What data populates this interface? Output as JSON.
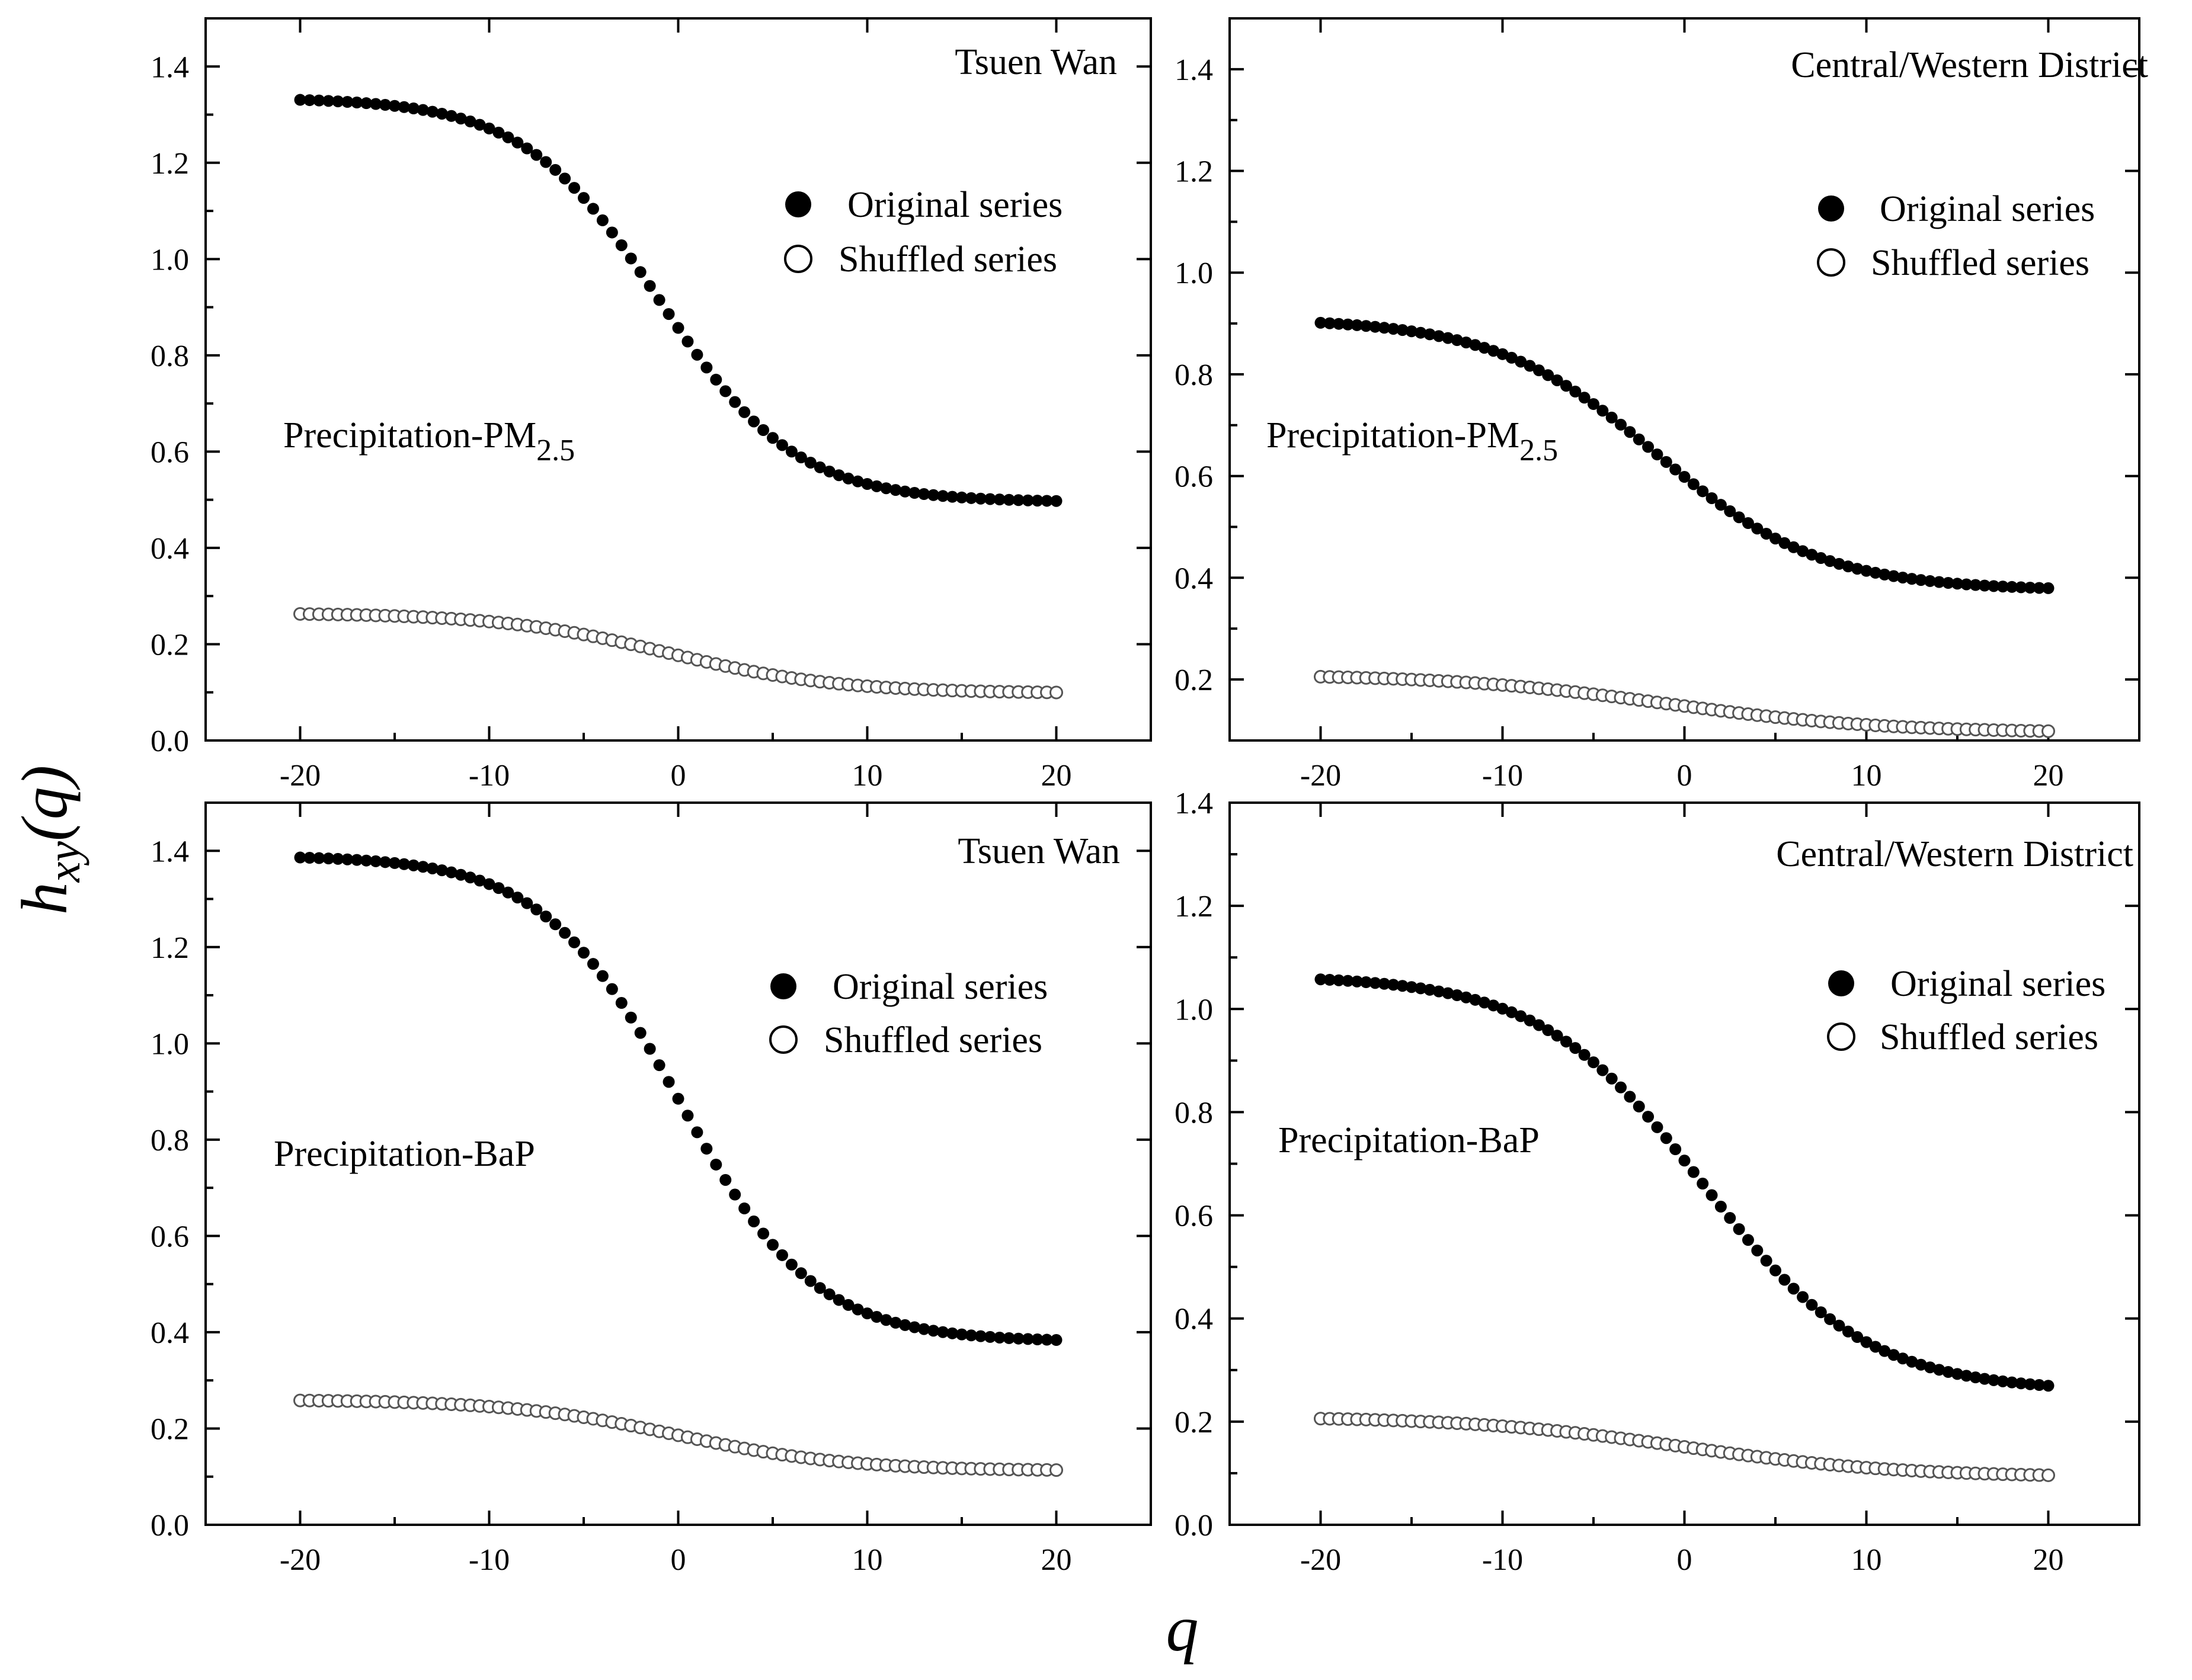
{
  "figure": {
    "ylabel_main": "h",
    "ylabel_sub": "xy",
    "ylabel_tail": "(q)",
    "xlabel": "q"
  },
  "chart_data": [
    {
      "type": "scatter",
      "title": "Tsuen Wan",
      "label_main": "Precipitation-PM",
      "label_sub": "2.5",
      "xlim": [
        -25,
        25
      ],
      "ylim": [
        0.0,
        1.5
      ],
      "xticks": [
        -20,
        -10,
        0,
        10,
        20
      ],
      "yticks": [
        0.0,
        0.2,
        0.4,
        0.6,
        0.8,
        1.0,
        1.2,
        1.4
      ],
      "legend": [
        "Original series",
        "Shuffled series"
      ],
      "series": [
        {
          "name": "Original series",
          "marker": "filled-circle",
          "hmax": 1.335,
          "hmin": 0.495,
          "shift": -1.0,
          "width": 3.6
        },
        {
          "name": "Shuffled series",
          "marker": "open-circle",
          "hmax": 0.265,
          "hmin": 0.098,
          "shift": -0.5,
          "width": 4.5
        }
      ]
    },
    {
      "type": "scatter",
      "title": "Central/Western District",
      "label_main": "Precipitation-PM",
      "label_sub": "2.5",
      "xlim": [
        -25,
        25
      ],
      "ylim": [
        0.08,
        1.5
      ],
      "xticks": [
        -20,
        -10,
        0,
        10,
        20
      ],
      "yticks": [
        0.2,
        0.4,
        0.6,
        0.8,
        1.0,
        1.2,
        1.4
      ],
      "legend": [
        "Original series",
        "Shuffled series"
      ],
      "series": [
        {
          "name": "Original series",
          "marker": "filled-circle",
          "hmax": 0.91,
          "hmin": 0.375,
          "shift": -1.5,
          "width": 4.5
        },
        {
          "name": "Shuffled series",
          "marker": "open-circle",
          "hmax": 0.21,
          "hmin": 0.095,
          "shift": -1.0,
          "width": 6.0
        }
      ]
    },
    {
      "type": "scatter",
      "title": "Tsuen Wan",
      "label_main": "Precipitation-BaP",
      "label_sub": "",
      "xlim": [
        -25,
        25
      ],
      "ylim": [
        0.0,
        1.5
      ],
      "xticks": [
        -20,
        -10,
        0,
        10,
        20
      ],
      "yticks": [
        0.0,
        0.2,
        0.4,
        0.6,
        0.8,
        1.0,
        1.2,
        1.4
      ],
      "legend": [
        "Original series",
        "Shuffled series"
      ],
      "series": [
        {
          "name": "Original series",
          "marker": "filled-circle",
          "hmax": 1.39,
          "hmin": 0.38,
          "shift": 0.0,
          "width": 3.6
        },
        {
          "name": "Shuffled series",
          "marker": "open-circle",
          "hmax": 0.26,
          "hmin": 0.112,
          "shift": 0.0,
          "width": 4.5
        }
      ]
    },
    {
      "type": "scatter",
      "title": "Central/Western District",
      "label_main": "Precipitation-BaP",
      "label_sub": "",
      "xlim": [
        -25,
        25
      ],
      "ylim": [
        0.0,
        1.4
      ],
      "xticks": [
        -20,
        -10,
        0,
        10,
        20
      ],
      "yticks": [
        0.0,
        0.2,
        0.4,
        0.6,
        0.8,
        1.0,
        1.2,
        1.4
      ],
      "legend": [
        "Original series",
        "Shuffled series"
      ],
      "series": [
        {
          "name": "Original series",
          "marker": "filled-circle",
          "hmax": 1.065,
          "hmin": 0.258,
          "shift": 1.0,
          "width": 4.5
        },
        {
          "name": "Shuffled series",
          "marker": "open-circle",
          "hmax": 0.21,
          "hmin": 0.092,
          "shift": 0.0,
          "width": 6.0
        }
      ]
    }
  ]
}
